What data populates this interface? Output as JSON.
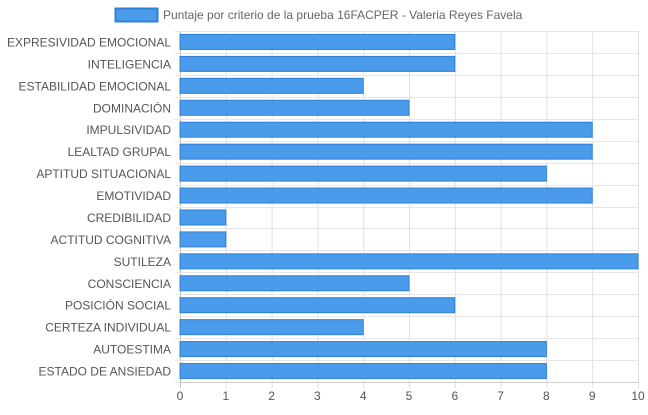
{
  "chart_data": {
    "type": "bar",
    "orientation": "horizontal",
    "title": "",
    "xlabel": "",
    "ylabel": "",
    "xlim": [
      0,
      10
    ],
    "ticks": [
      "0",
      "1",
      "2",
      "3",
      "4",
      "5",
      "6",
      "7",
      "8",
      "9",
      "10"
    ],
    "grid": true,
    "legend_position": "top",
    "categories": [
      "EXPRESIVIDAD EMOCIONAL",
      "INTELIGENCIA",
      "ESTABILIDAD EMOCIONAL",
      "DOMINACIÓN",
      "IMPULSIVIDAD",
      "LEALTAD GRUPAL",
      "APTITUD SITUACIONAL",
      "EMOTIVIDAD",
      "CREDIBILIDAD",
      "ACTITUD COGNITIVA",
      "SUTILEZA",
      "CONSCIENCIA",
      "POSICIÓN SOCIAL",
      "CERTEZA INDIVIDUAL",
      "AUTOESTIMA",
      "ESTADO DE ANSIEDAD"
    ],
    "series": [
      {
        "name": "Puntaje por criterio de la prueba 16FACPER - Valeria Reyes Favela",
        "color": "#4a9bea",
        "border_color": "#2f80d8",
        "values": [
          6,
          6,
          4,
          5,
          9,
          9,
          8,
          9,
          1,
          1,
          10,
          5,
          6,
          4,
          8,
          8
        ]
      }
    ]
  }
}
